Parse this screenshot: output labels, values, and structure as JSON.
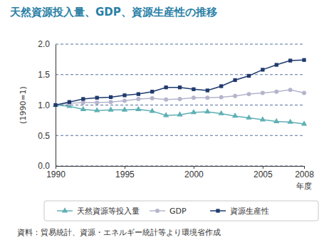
{
  "chart_data": {
    "type": "line",
    "title": "天然資源投入量、GDP、資源生産性の推移",
    "y_label": "(1990=1)",
    "x_label": "年度",
    "source": "資料：貿易統計、資源・エネルギー統計等より環境省作成",
    "x": [
      1990,
      1991,
      1992,
      1993,
      1994,
      1995,
      1996,
      1997,
      1998,
      1999,
      2000,
      2001,
      2002,
      2003,
      2004,
      2005,
      2006,
      2007,
      2008
    ],
    "xlim": [
      1990,
      2008
    ],
    "xticks": [
      1990,
      1995,
      2000,
      2005,
      2008
    ],
    "ylim": [
      0,
      2
    ],
    "yticks": [
      {
        "value": 0,
        "label": "0.0"
      },
      {
        "value": 0.5,
        "label": "0.5"
      },
      {
        "value": 1,
        "label": "1.0"
      },
      {
        "value": 1.5,
        "label": "1.5"
      },
      {
        "value": 2,
        "label": "2.0"
      }
    ],
    "grid": true,
    "legend": "bottom",
    "series": [
      {
        "name": "天然資源等投入量",
        "color": "#5fb0b4",
        "marker": "triangle",
        "values": [
          1.0,
          0.98,
          0.93,
          0.91,
          0.92,
          0.92,
          0.93,
          0.9,
          0.83,
          0.84,
          0.88,
          0.89,
          0.86,
          0.82,
          0.79,
          0.76,
          0.73,
          0.72,
          0.69
        ]
      },
      {
        "name": "GDP",
        "color": "#b4b4cc",
        "marker": "circle",
        "values": [
          1.0,
          1.03,
          1.04,
          1.04,
          1.05,
          1.07,
          1.1,
          1.11,
          1.09,
          1.1,
          1.12,
          1.12,
          1.13,
          1.15,
          1.18,
          1.2,
          1.22,
          1.25,
          1.2
        ]
      },
      {
        "name": "資源生産性",
        "color": "#1f3a6e",
        "marker": "square",
        "values": [
          1.0,
          1.05,
          1.1,
          1.12,
          1.13,
          1.16,
          1.18,
          1.22,
          1.29,
          1.29,
          1.26,
          1.24,
          1.31,
          1.41,
          1.48,
          1.58,
          1.66,
          1.73,
          1.74
        ]
      }
    ]
  }
}
